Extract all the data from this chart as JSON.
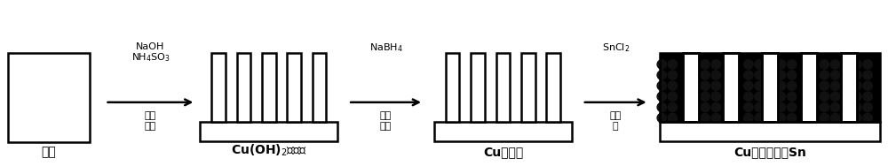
{
  "bg_color": "#ffffff",
  "line_color": "#000000",
  "dot_color": "#111111",
  "step_labels": [
    "铜片",
    "Cu(OH)$_2$纳米线",
    "Cu纳米线",
    "Cu纳米线负载Sn"
  ],
  "fig_width": 10.0,
  "fig_height": 1.88,
  "dpi": 100,
  "arrow1_lines": [
    "NaOH",
    "NH$_4$SO$_3$",
    "氧化",
    "反应"
  ],
  "arrow2_lines": [
    "NaBH$_4$",
    "还原",
    "反应"
  ],
  "arrow3_lines": [
    "SnCl$_2$",
    "电沉",
    "积"
  ]
}
